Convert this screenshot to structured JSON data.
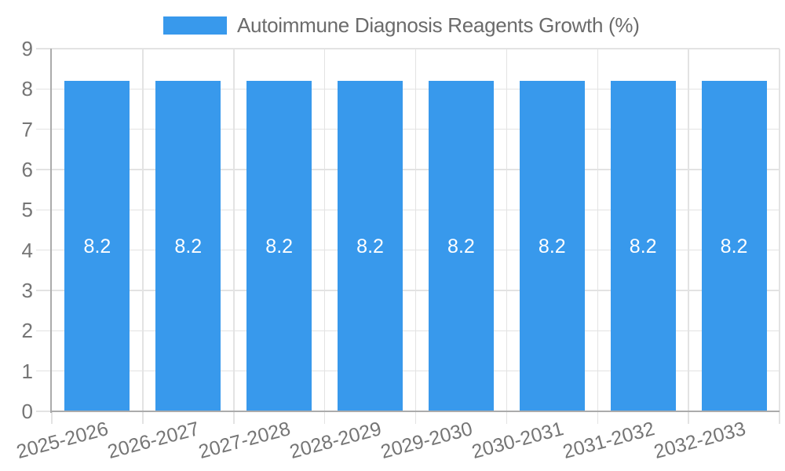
{
  "chart_data": {
    "type": "bar",
    "title": "Autoimmune Diagnosis Reagents Growth (%)",
    "categories": [
      "2025-2026",
      "2026-2027",
      "2027-2028",
      "2028-2029",
      "2029-2030",
      "2030-2031",
      "2031-2032",
      "2032-2033"
    ],
    "series": [
      {
        "name": "Autoimmune Diagnosis Reagents Growth (%)",
        "values": [
          8.2,
          8.2,
          8.2,
          8.2,
          8.2,
          8.2,
          8.2,
          8.2
        ]
      }
    ],
    "value_labels": [
      "8.2",
      "8.2",
      "8.2",
      "8.2",
      "8.2",
      "8.2",
      "8.2",
      "8.2"
    ],
    "xlabel": "",
    "ylabel": "",
    "ylim": [
      0,
      9
    ],
    "y_ticks": [
      0,
      1,
      2,
      3,
      4,
      5,
      6,
      7,
      8,
      9
    ],
    "grid": true,
    "legend_position": "top",
    "x_tick_rotation_deg": -15
  },
  "colors": {
    "bar": "#3899ec",
    "grid": "#e3e3e3",
    "axis": "#ababab",
    "tick_label": "#757575",
    "title_text": "#6b6b6b",
    "value_label": "#ffffff",
    "background": "#ffffff"
  }
}
